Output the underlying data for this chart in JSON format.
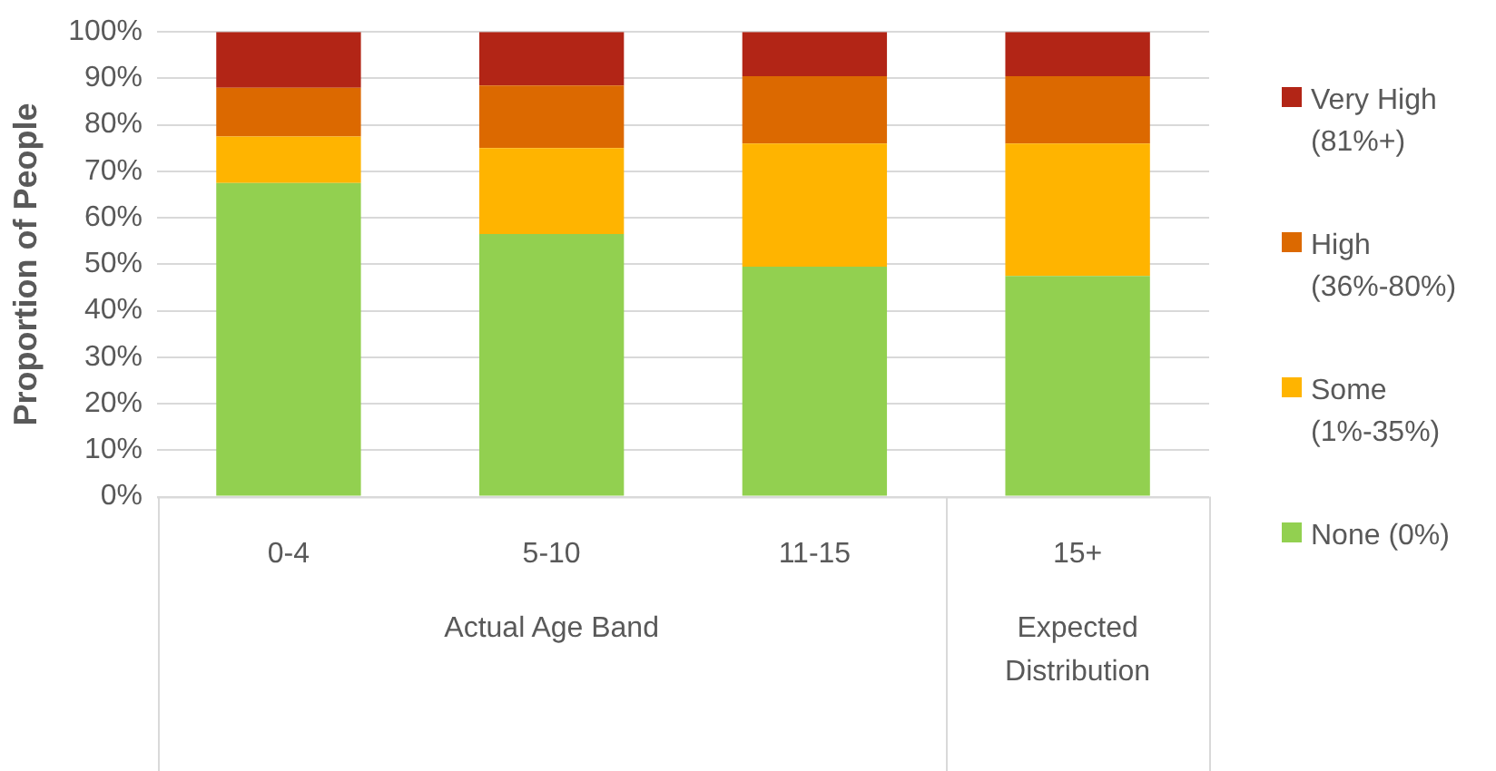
{
  "chart_data": {
    "type": "bar",
    "stacked": true,
    "ylabel": "Proportion of People",
    "categories": [
      "0-4",
      "5-10",
      "11-15",
      "15+"
    ],
    "series": [
      {
        "name": "None (0%)",
        "color": "#92d050",
        "values": [
          67.5,
          56.5,
          49.5,
          47.5
        ]
      },
      {
        "name": "Some (1%-35%)",
        "color": "#ffb400",
        "values": [
          10,
          18.5,
          26.5,
          28.5
        ]
      },
      {
        "name": "High (36%-80%)",
        "color": "#dc6900",
        "values": [
          10.5,
          13.5,
          14.5,
          14.5
        ]
      },
      {
        "name": "Very High (81%+)",
        "color": "#b22516",
        "values": [
          12,
          11.5,
          9.5,
          9.5
        ]
      }
    ],
    "ylim": [
      0,
      100
    ],
    "yticks": [
      {
        "value": 0,
        "label": "0%"
      },
      {
        "value": 10,
        "label": "10%"
      },
      {
        "value": 20,
        "label": "20%"
      },
      {
        "value": 30,
        "label": "30%"
      },
      {
        "value": 40,
        "label": "40%"
      },
      {
        "value": 50,
        "label": "50%"
      },
      {
        "value": 60,
        "label": "60%"
      },
      {
        "value": 70,
        "label": "70%"
      },
      {
        "value": 80,
        "label": "80%"
      },
      {
        "value": 90,
        "label": "90%"
      },
      {
        "value": 100,
        "label": "100%"
      }
    ],
    "grid": "y",
    "legend": "right",
    "annotations": [
      "Actual Age Band",
      "Expected Distribution"
    ]
  }
}
